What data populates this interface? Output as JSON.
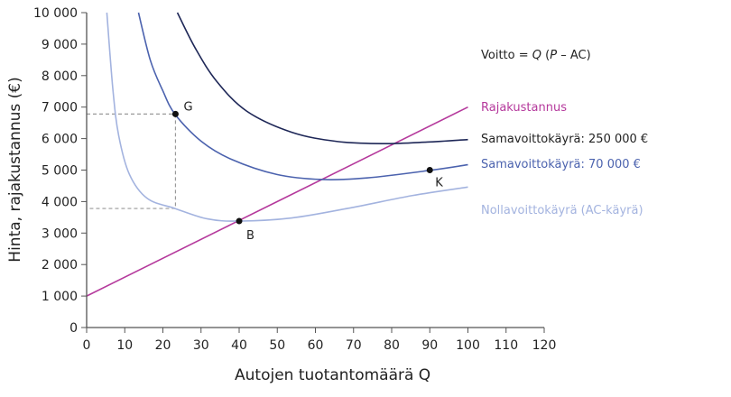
{
  "chart_data": {
    "type": "line",
    "xlabel": "Autojen tuotantomäärä Q",
    "ylabel": "Hinta, rajakustannus (€)",
    "xlim": [
      0,
      120
    ],
    "ylim": [
      0,
      10000
    ],
    "xticks": [
      0,
      10,
      20,
      30,
      40,
      50,
      60,
      70,
      80,
      90,
      100,
      110,
      120
    ],
    "yticks": [
      0,
      1000,
      2000,
      3000,
      4000,
      5000,
      6000,
      7000,
      8000,
      9000,
      10000
    ],
    "ytick_labels": [
      "0",
      "1 000",
      "2 000",
      "3 000",
      "4 000",
      "5 000",
      "6 000",
      "7 000",
      "8 000",
      "9 000",
      "10 000"
    ],
    "grid": false,
    "annotation": {
      "prefix": "Voitto = ",
      "q": "Q",
      "open": " (",
      "p": "P",
      "rest": " – AC)"
    },
    "series": [
      {
        "name": "Rajakustannus",
        "color": "#b5399c",
        "points": [
          [
            0,
            1000
          ],
          [
            100,
            7000
          ]
        ]
      },
      {
        "name": "Samavoittokäyrä: 250 000 €",
        "color": "#1e2757",
        "points": [
          [
            23.8,
            10000
          ],
          [
            28.5,
            8870
          ],
          [
            34.1,
            7820
          ],
          [
            42,
            6870
          ],
          [
            53.8,
            6200
          ],
          [
            65.6,
            5910
          ],
          [
            77.5,
            5840
          ],
          [
            89.3,
            5890
          ],
          [
            100,
            5970
          ]
        ]
      },
      {
        "name": "Samavoittokäyrä: 70 000 €",
        "color": "#4b62ae",
        "points": [
          [
            13.6,
            10000
          ],
          [
            16.7,
            8490
          ],
          [
            19.9,
            7540
          ],
          [
            23.2,
            6770
          ],
          [
            30.1,
            5910
          ],
          [
            38,
            5340
          ],
          [
            49.9,
            4860
          ],
          [
            61.7,
            4700
          ],
          [
            73.5,
            4750
          ],
          [
            90,
            4990
          ],
          [
            100,
            5170
          ]
        ]
      },
      {
        "name": "Nollavoittokäyrä (AC-käyrä)",
        "color": "#a3b3df",
        "points": [
          [
            5.3,
            10000
          ],
          [
            6.9,
            7540
          ],
          [
            8.4,
            6100
          ],
          [
            11.2,
            4870
          ],
          [
            15.9,
            4100
          ],
          [
            23.2,
            3780
          ],
          [
            31.7,
            3450
          ],
          [
            40,
            3380
          ],
          [
            53.8,
            3480
          ],
          [
            69.6,
            3810
          ],
          [
            85.4,
            4190
          ],
          [
            100,
            4460
          ]
        ]
      }
    ],
    "points": [
      {
        "label": "G",
        "x": 23.3,
        "y": 6780
      },
      {
        "label": "B",
        "x": 40,
        "y": 3380
      },
      {
        "label": "K",
        "x": 90,
        "y": 5000
      }
    ],
    "guides": [
      {
        "from": [
          0,
          6780
        ],
        "to": [
          23.3,
          6780
        ]
      },
      {
        "from": [
          23.3,
          6780
        ],
        "to": [
          23.3,
          3780
        ]
      },
      {
        "from": [
          23.3,
          3780
        ],
        "to": [
          0,
          3780
        ]
      }
    ]
  }
}
